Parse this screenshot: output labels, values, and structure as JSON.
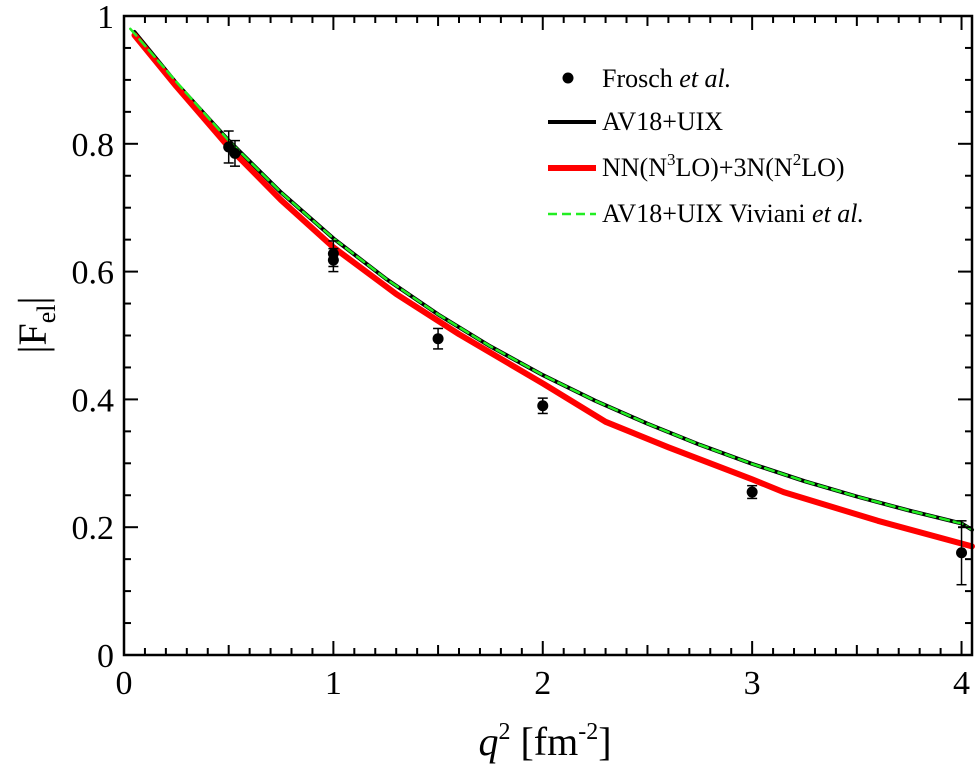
{
  "chart_data": {
    "type": "line",
    "title": "",
    "xlabel_main": "q",
    "xlabel_sup": "2",
    "xlabel_unit_open": " [fm",
    "xlabel_unit_sup": "-2",
    "xlabel_unit_close": "]",
    "ylabel_main": "|F",
    "ylabel_sub": "el",
    "ylabel_close": "|",
    "xlim": [
      0,
      4.05
    ],
    "ylim": [
      0,
      1
    ],
    "x_ticks": [
      0,
      1,
      2,
      3,
      4
    ],
    "x_tick_labels": [
      "0",
      "1",
      "2",
      "3",
      "4"
    ],
    "y_ticks": [
      0,
      0.2,
      0.4,
      0.6,
      0.8,
      1.0
    ],
    "y_tick_labels": [
      "0",
      "0.2",
      "0.4",
      "0.6",
      "0.8",
      "1"
    ],
    "grid": false,
    "legend_position": "top-right",
    "series": [
      {
        "name": "AV18+UIX",
        "kind": "line",
        "color": "#000000",
        "x": [
          0.05,
          0.25,
          0.5,
          0.75,
          1.0,
          1.25,
          1.5,
          1.75,
          2.0,
          2.25,
          2.5,
          2.75,
          3.0,
          3.25,
          3.5,
          3.75,
          4.0,
          4.05
        ],
        "y": [
          0.975,
          0.895,
          0.805,
          0.724,
          0.652,
          0.589,
          0.533,
          0.483,
          0.438,
          0.398,
          0.362,
          0.329,
          0.299,
          0.272,
          0.248,
          0.226,
          0.206,
          0.196
        ]
      },
      {
        "name": "NN(N3LO)+3N(N2LO)",
        "kind": "line",
        "color": "#ff0000",
        "x": [
          0.05,
          0.25,
          0.5,
          0.75,
          1.0,
          1.3,
          1.6,
          2.0,
          2.3,
          2.6,
          3.0,
          3.15,
          3.6,
          4.05
        ],
        "y": [
          0.97,
          0.89,
          0.795,
          0.712,
          0.638,
          0.565,
          0.502,
          0.425,
          0.365,
          0.325,
          0.275,
          0.255,
          0.21,
          0.17
        ]
      },
      {
        "name": "AV18+UIX Viviani et al.",
        "kind": "dashed-line",
        "color": "#22ee22",
        "x": [
          0.03,
          0.25,
          0.5,
          0.75,
          1.0,
          1.25,
          1.5,
          1.75,
          2.0,
          2.25,
          2.5,
          2.75,
          3.0,
          3.25,
          3.5,
          3.75,
          4.0,
          4.05
        ],
        "y": [
          0.98,
          0.897,
          0.805,
          0.724,
          0.652,
          0.589,
          0.533,
          0.483,
          0.438,
          0.398,
          0.362,
          0.329,
          0.299,
          0.272,
          0.248,
          0.226,
          0.206,
          0.196
        ]
      },
      {
        "name": "Frosch",
        "name_suffix": "et al.",
        "kind": "scatter",
        "color": "#000000",
        "points": [
          {
            "x": 0.5,
            "y": 0.795,
            "err": 0.025
          },
          {
            "x": 0.53,
            "y": 0.785,
            "err": 0.02
          },
          {
            "x": 1.0,
            "y": 0.628,
            "err": 0.02
          },
          {
            "x": 1.0,
            "y": 0.618,
            "err": 0.018
          },
          {
            "x": 1.5,
            "y": 0.495,
            "err": 0.016
          },
          {
            "x": 2.0,
            "y": 0.39,
            "err": 0.012
          },
          {
            "x": 3.0,
            "y": 0.255,
            "err": 0.01
          },
          {
            "x": 4.0,
            "y": 0.16,
            "err": 0.05
          }
        ]
      }
    ],
    "legend": [
      {
        "parts": [
          {
            "t": "Frosch  ",
            "s": "normal"
          },
          {
            "t": "et al.",
            "s": "italic"
          }
        ],
        "marker": "dot",
        "color": "#000000"
      },
      {
        "parts": [
          {
            "t": "AV18+UIX",
            "s": "normal"
          }
        ],
        "marker": "solid",
        "color": "#000000"
      },
      {
        "parts": [
          {
            "t": "NN(N",
            "s": "normal"
          },
          {
            "t": "3",
            "s": "sup"
          },
          {
            "t": "LO)+3N(N",
            "s": "normal"
          },
          {
            "t": "2",
            "s": "sup"
          },
          {
            "t": "LO)",
            "s": "normal"
          }
        ],
        "marker": "solid",
        "color": "#ff0000"
      },
      {
        "parts": [
          {
            "t": "AV18+UIX Viviani ",
            "s": "normal"
          },
          {
            "t": "et al.",
            "s": "italic"
          }
        ],
        "marker": "dashed",
        "color": "#22ee22"
      }
    ]
  }
}
